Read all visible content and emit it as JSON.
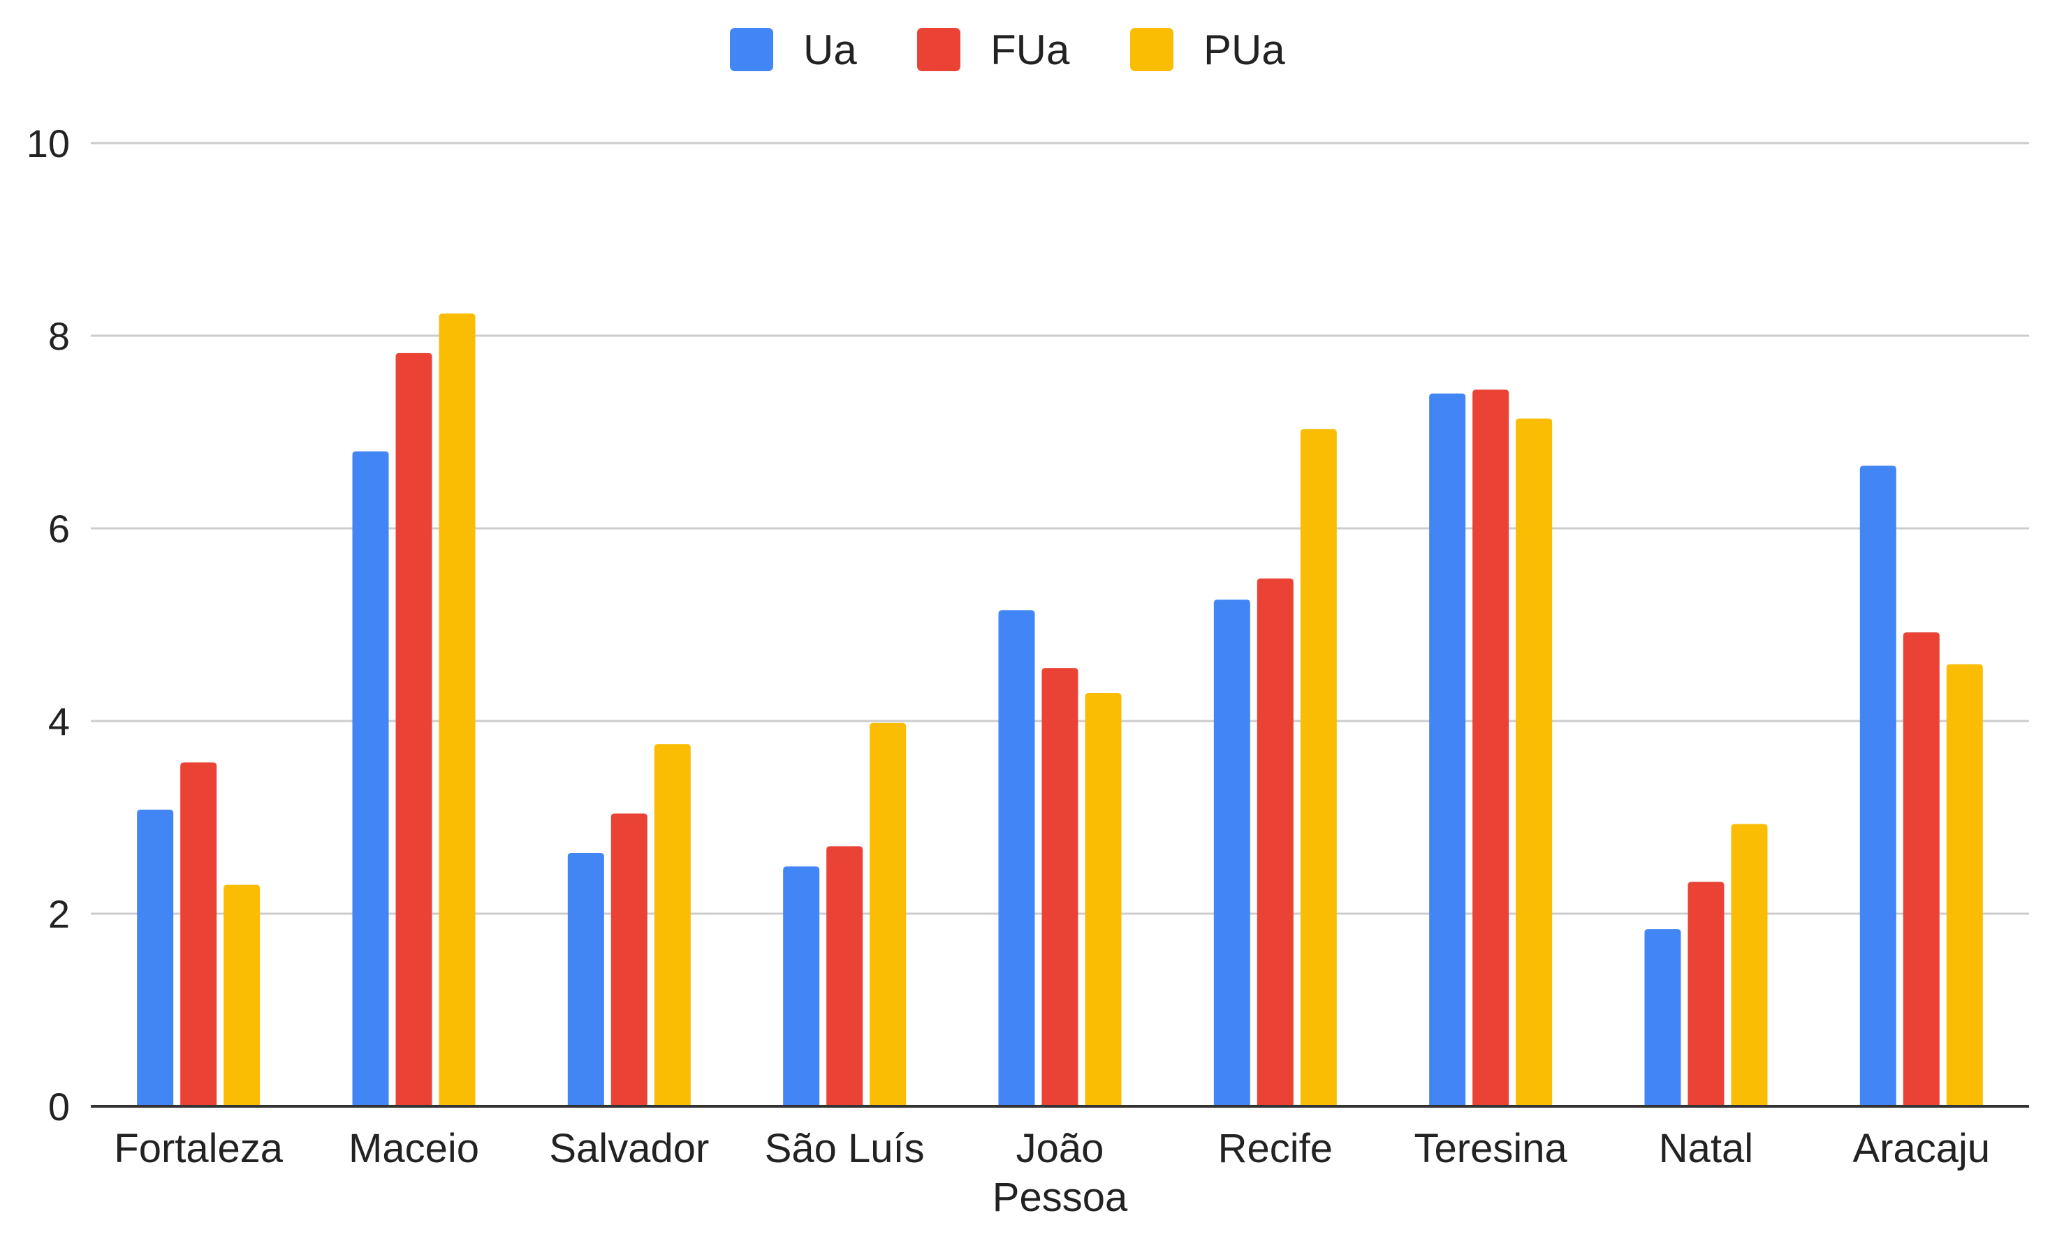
{
  "chart_data": {
    "type": "bar",
    "title": "",
    "xlabel": "",
    "ylabel": "",
    "categories": [
      [
        "Fortaleza"
      ],
      [
        "Maceio"
      ],
      [
        "Salvador"
      ],
      [
        "São Luís"
      ],
      [
        "João",
        "Pessoa"
      ],
      [
        "Recife"
      ],
      [
        "Teresina"
      ],
      [
        "Natal"
      ],
      [
        "Aracaju"
      ]
    ],
    "series": [
      {
        "name": "Ua",
        "color": "#4285F4",
        "values": [
          3.08,
          6.8,
          2.63,
          2.49,
          5.15,
          5.26,
          7.4,
          1.84,
          6.65
        ]
      },
      {
        "name": "FUa",
        "color": "#EA4335",
        "values": [
          3.57,
          7.82,
          3.04,
          2.7,
          4.55,
          5.48,
          7.44,
          2.33,
          4.92
        ]
      },
      {
        "name": "PUa",
        "color": "#FBBC04",
        "values": [
          2.3,
          8.23,
          3.76,
          3.98,
          4.29,
          7.03,
          7.14,
          2.93,
          4.59
        ]
      }
    ],
    "ylim": [
      0,
      10
    ],
    "yticks": [
      0,
      2,
      4,
      6,
      8,
      10
    ],
    "grid": true,
    "legend_position": "top-center",
    "gridline_color": "#cccccc",
    "axis_color": "#333333"
  }
}
